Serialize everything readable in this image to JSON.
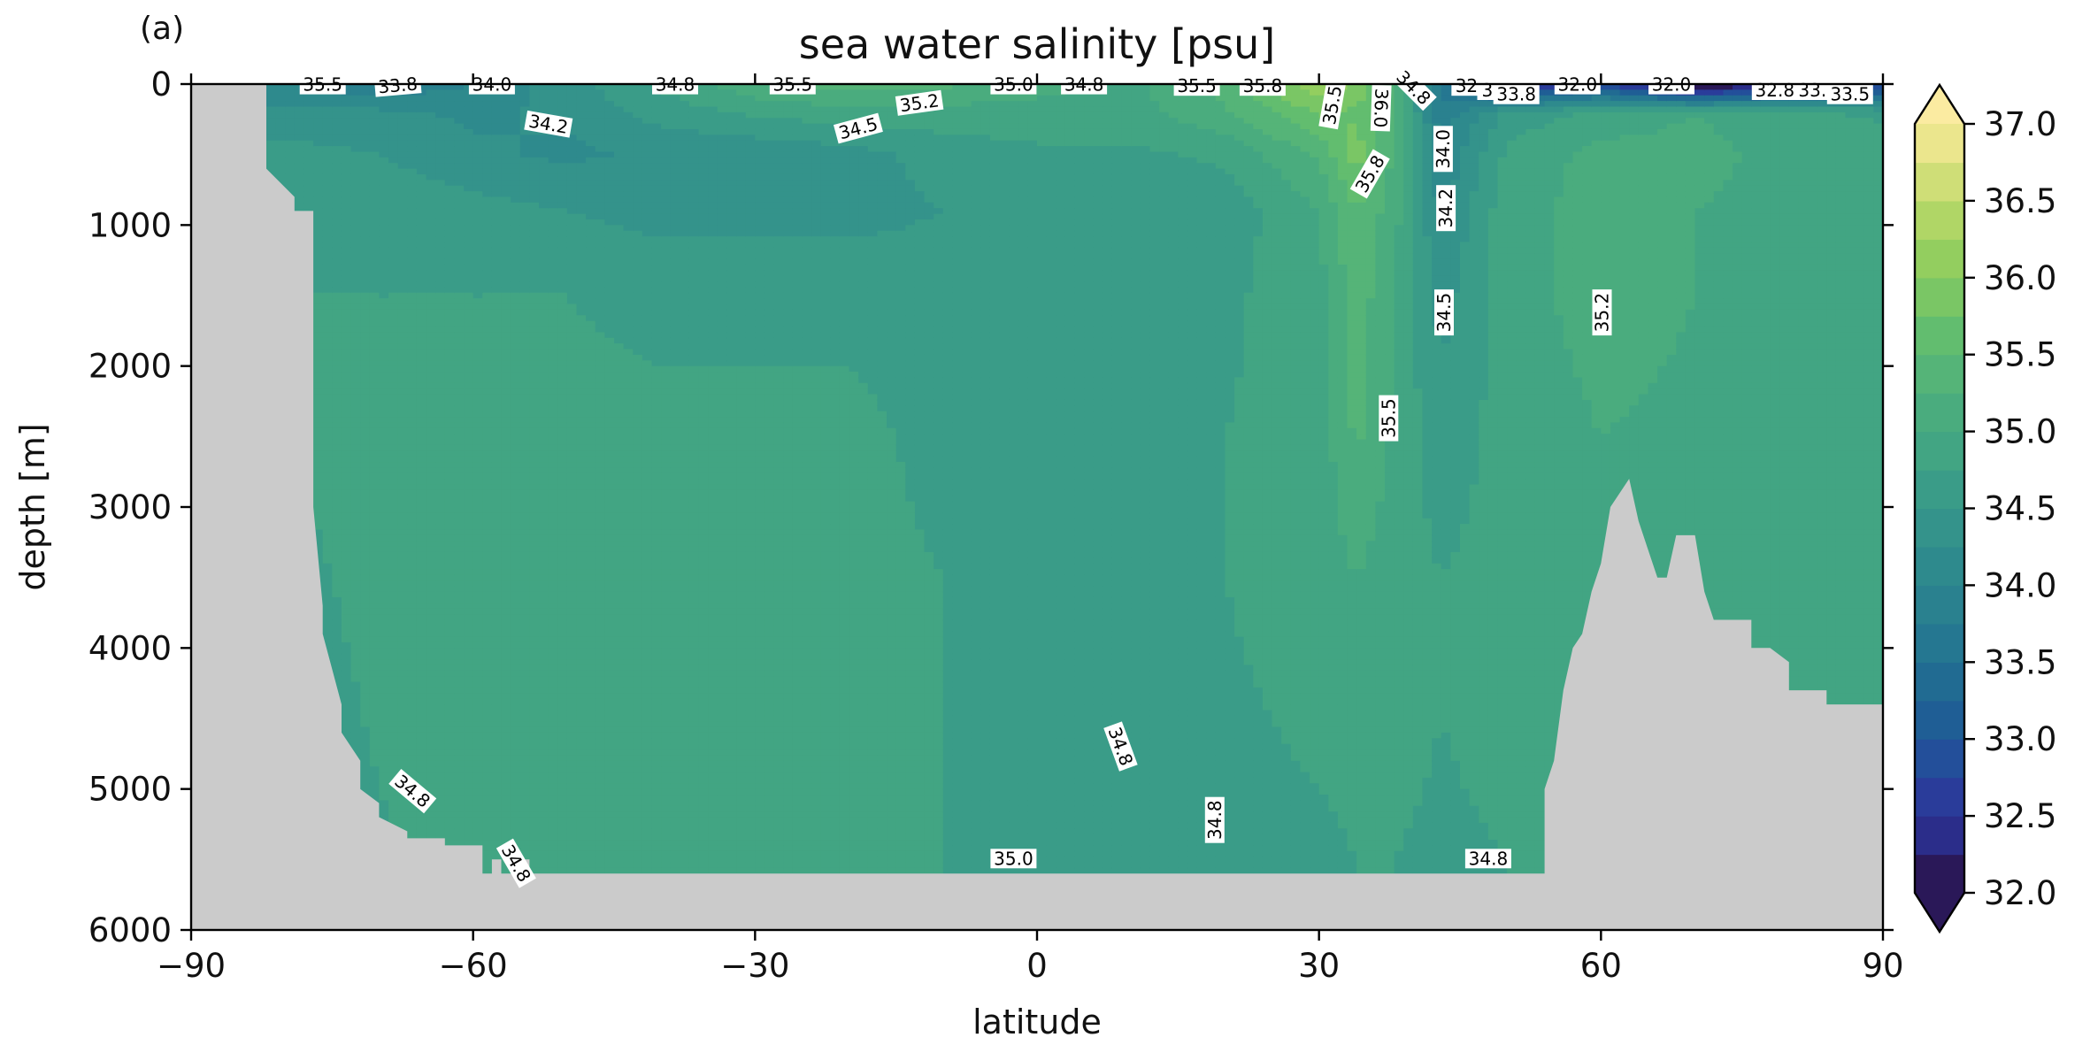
{
  "panel_label": "(a)",
  "chart_data": {
    "type": "heatmap",
    "title": "sea water salinity [psu]",
    "xlabel": "latitude",
    "ylabel": "depth [m]",
    "xlim": [
      -90,
      90
    ],
    "ylim": [
      6000,
      0
    ],
    "y_inverted": true,
    "xticks": [
      -90,
      -60,
      -30,
      0,
      30,
      60,
      90
    ],
    "xtick_labels": [
      "−90",
      "−60",
      "−30",
      "0",
      "30",
      "60",
      "90"
    ],
    "yticks": [
      0,
      1000,
      2000,
      3000,
      4000,
      5000,
      6000
    ],
    "ytick_labels": [
      "0",
      "1000",
      "2000",
      "3000",
      "4000",
      "5000",
      "6000"
    ],
    "colorbar": {
      "range": [
        32.0,
        37.0
      ],
      "extend": "both",
      "levels": [
        32.0,
        32.25,
        32.5,
        32.75,
        33.0,
        33.25,
        33.5,
        33.75,
        34.0,
        34.25,
        34.5,
        34.75,
        35.0,
        35.25,
        35.5,
        35.75,
        36.0,
        36.25,
        36.5,
        36.75,
        37.0
      ],
      "tick_values": [
        32.0,
        32.5,
        33.0,
        33.5,
        34.0,
        34.5,
        35.0,
        35.5,
        36.0,
        36.5,
        37.0
      ],
      "tick_labels": [
        "32.0",
        "32.5",
        "33.0",
        "33.5",
        "34.0",
        "34.5",
        "35.0",
        "35.5",
        "36.0",
        "36.5",
        "37.0"
      ],
      "colors": [
        "#2a1858",
        "#2b2d8a",
        "#2a3c9a",
        "#234f9a",
        "#1f5e95",
        "#216b92",
        "#257791",
        "#2a818f",
        "#2e8a8d",
        "#34938b",
        "#3a9c88",
        "#42a583",
        "#4aac7e",
        "#55b478",
        "#62bd6f",
        "#7ac665",
        "#93ce5f",
        "#b0d666",
        "#cfde77",
        "#ebe68d",
        "#fbeba1"
      ]
    },
    "land_color": "#cbcbcb",
    "seafloor_depth_profile": {
      "lat": [
        -90,
        -82,
        -82,
        -79,
        -79,
        -77,
        -77,
        -76,
        -76,
        -74,
        -74,
        -72,
        -72,
        -70,
        -70,
        -67,
        -67,
        -63,
        -63,
        -59,
        -59,
        -58,
        -58,
        -57,
        -57,
        -55,
        -55,
        -54,
        -54,
        -30,
        -15,
        0,
        20,
        38,
        40,
        45,
        54,
        54,
        55,
        56,
        57,
        58,
        59,
        60,
        61,
        63,
        64,
        65,
        66,
        67,
        68,
        70,
        71,
        72,
        74,
        76,
        76,
        78,
        80,
        80,
        84,
        84,
        90
      ],
      "depth": [
        0,
        0,
        600,
        800,
        900,
        900,
        3000,
        3700,
        3900,
        4400,
        4600,
        4800,
        5000,
        5100,
        5200,
        5300,
        5350,
        5350,
        5400,
        5400,
        5600,
        5600,
        5500,
        5500,
        5600,
        5600,
        5500,
        5500,
        5600,
        5600,
        5600,
        5600,
        5600,
        5600,
        5600,
        5600,
        5600,
        5000,
        4800,
        4300,
        4000,
        3900,
        3600,
        3400,
        3000,
        2800,
        3100,
        3300,
        3500,
        3500,
        3200,
        3200,
        3600,
        3800,
        3800,
        3800,
        4000,
        4000,
        4100,
        4300,
        4300,
        4400,
        4400
      ]
    },
    "salinity_grid": {
      "lat": [
        -80,
        -70,
        -60,
        -50,
        -40,
        -30,
        -20,
        -10,
        0,
        10,
        20,
        30,
        34,
        38,
        43,
        50,
        60,
        70,
        80,
        90
      ],
      "depth": [
        0,
        200,
        500,
        900,
        1500,
        2500,
        3500,
        4500,
        5500
      ],
      "values": [
        [
          34.0,
          33.8,
          34.0,
          34.4,
          34.8,
          35.2,
          35.4,
          35.3,
          35.1,
          34.9,
          35.4,
          36.2,
          36.0,
          35.3,
          33.6,
          32.2,
          32.8,
          31.6,
          32.4,
          32.6
        ],
        [
          34.3,
          34.3,
          34.2,
          34.3,
          34.6,
          34.8,
          34.9,
          34.9,
          34.9,
          34.9,
          35.2,
          35.8,
          35.7,
          35.2,
          33.8,
          34.6,
          34.8,
          35.0,
          34.8,
          34.7
        ],
        [
          34.6,
          34.5,
          34.3,
          34.2,
          34.3,
          34.3,
          34.4,
          34.6,
          34.7,
          34.7,
          34.8,
          35.3,
          35.9,
          35.2,
          34.0,
          34.8,
          35.1,
          35.1,
          34.9,
          34.9
        ],
        [
          34.7,
          34.7,
          34.6,
          34.5,
          34.4,
          34.4,
          34.4,
          34.5,
          34.5,
          34.5,
          34.6,
          35.0,
          35.5,
          35.1,
          34.2,
          34.9,
          35.1,
          35.0,
          34.9,
          34.9
        ],
        [
          34.75,
          34.75,
          34.75,
          34.75,
          34.7,
          34.7,
          34.7,
          34.65,
          34.6,
          34.6,
          34.7,
          34.9,
          35.4,
          35.0,
          34.4,
          34.9,
          35.1,
          35.0,
          34.95,
          34.95
        ],
        [
          34.75,
          34.8,
          34.8,
          34.8,
          34.8,
          34.8,
          34.8,
          34.7,
          34.7,
          34.7,
          34.75,
          34.85,
          35.3,
          34.95,
          34.6,
          34.85,
          35.0,
          34.95,
          34.9,
          34.9
        ],
        [
          34.72,
          34.78,
          34.8,
          34.8,
          34.8,
          34.8,
          34.8,
          34.75,
          34.7,
          34.7,
          34.75,
          34.85,
          35.0,
          34.85,
          34.75,
          34.85,
          34.95,
          34.9,
          34.9,
          34.9
        ],
        [
          34.7,
          34.76,
          34.78,
          34.8,
          34.8,
          34.8,
          34.8,
          34.75,
          34.7,
          34.7,
          34.72,
          34.78,
          34.8,
          34.8,
          34.75,
          34.8,
          34.9,
          34.9,
          34.9,
          34.9
        ],
        [
          34.68,
          34.74,
          34.78,
          34.8,
          34.8,
          34.8,
          34.8,
          34.75,
          34.7,
          34.65,
          34.7,
          34.72,
          34.75,
          34.75,
          34.72,
          34.75,
          34.85,
          34.9,
          34.9,
          34.9
        ]
      ]
    },
    "contour_labels": [
      {
        "text": "35.5",
        "lat": -76,
        "depth": 10,
        "rot": 0
      },
      {
        "text": "33.8",
        "lat": -68,
        "depth": 15,
        "rot": -5
      },
      {
        "text": "34.0",
        "lat": -58,
        "depth": 10,
        "rot": 0
      },
      {
        "text": "34.2",
        "lat": -52,
        "depth": 290,
        "rot": 10
      },
      {
        "text": "34.8",
        "lat": -38.5,
        "depth": 10,
        "rot": 0
      },
      {
        "text": "35.5",
        "lat": -26,
        "depth": 10,
        "rot": 0
      },
      {
        "text": "34.5",
        "lat": -19,
        "depth": 320,
        "rot": -15
      },
      {
        "text": "35.2",
        "lat": -12.5,
        "depth": 140,
        "rot": -8
      },
      {
        "text": "35.0",
        "lat": -2.5,
        "depth": 10,
        "rot": 0
      },
      {
        "text": "34.8",
        "lat": 5,
        "depth": 10,
        "rot": 0
      },
      {
        "text": "35.5",
        "lat": 17,
        "depth": 20,
        "rot": 0
      },
      {
        "text": "35.8",
        "lat": 24,
        "depth": 20,
        "rot": 0
      },
      {
        "text": "35.5",
        "lat": 31.5,
        "depth": 150,
        "rot": -80
      },
      {
        "text": "36.0",
        "lat": 36.5,
        "depth": 170,
        "rot": 92
      },
      {
        "text": "35.8",
        "lat": 35.5,
        "depth": 640,
        "rot": -60
      },
      {
        "text": "34.8",
        "lat": 40,
        "depth": 30,
        "rot": 45
      },
      {
        "text": "32.",
        "lat": 46,
        "depth": 20,
        "rot": 0
      },
      {
        "text": "3.",
        "lat": 48.2,
        "depth": 50,
        "rot": 0
      },
      {
        "text": "33.8",
        "lat": 51,
        "depth": 80,
        "rot": 0
      },
      {
        "text": "32.0",
        "lat": 57.5,
        "depth": 10,
        "rot": 0
      },
      {
        "text": "32.0",
        "lat": 67.5,
        "depth": 10,
        "rot": 0
      },
      {
        "text": "32.8",
        "lat": 78.5,
        "depth": 50,
        "rot": 0
      },
      {
        "text": "33.",
        "lat": 82.5,
        "depth": 50,
        "rot": 0
      },
      {
        "text": "33.5",
        "lat": 86.5,
        "depth": 80,
        "rot": 0
      },
      {
        "text": "34.0",
        "lat": 43.3,
        "depth": 460,
        "rot": -90
      },
      {
        "text": "34.2",
        "lat": 43.6,
        "depth": 880,
        "rot": -90
      },
      {
        "text": "34.5",
        "lat": 43.4,
        "depth": 1620,
        "rot": -90
      },
      {
        "text": "35.2",
        "lat": 60.2,
        "depth": 1620,
        "rot": -90
      },
      {
        "text": "35.5",
        "lat": 37.5,
        "depth": 2370,
        "rot": -90
      },
      {
        "text": "34.8",
        "lat": 8.8,
        "depth": 4700,
        "rot": 70
      },
      {
        "text": "34.8",
        "lat": 19,
        "depth": 5220,
        "rot": -90
      },
      {
        "text": "35.0",
        "lat": -2.5,
        "depth": 5500,
        "rot": 0
      },
      {
        "text": "34.8",
        "lat": 48,
        "depth": 5500,
        "rot": 0
      },
      {
        "text": "34.8",
        "lat": -66.5,
        "depth": 5020,
        "rot": 40
      },
      {
        "text": "34.8",
        "lat": -55.5,
        "depth": 5530,
        "rot": 60
      }
    ]
  }
}
